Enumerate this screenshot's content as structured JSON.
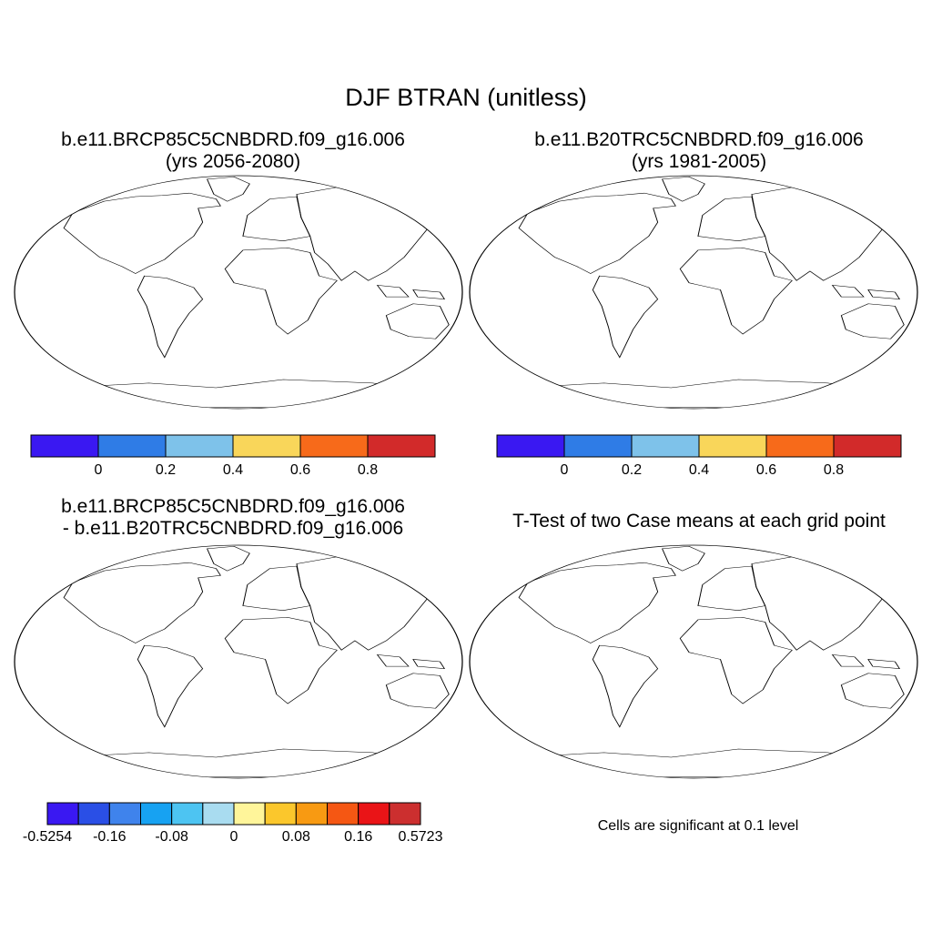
{
  "title": "DJF BTRAN (unitless)",
  "panels": [
    {
      "title_line1": "b.e11.BRCP85C5CNBDRD.f09_g16.006",
      "title_line2": "(yrs 2056-2080)",
      "map_type": "field",
      "colorbar": {
        "colors": [
          "#3a18f2",
          "#2f7ce6",
          "#7ec2ea",
          "#f9d65a",
          "#f76a1a",
          "#d22a2a"
        ],
        "labels": [
          "0",
          "0.2",
          "0.4",
          "0.6",
          "0.8"
        ]
      }
    },
    {
      "title_line1": "b.e11.B20TRC5CNBDRD.f09_g16.006",
      "title_line2": "(yrs 1981-2005)",
      "map_type": "field",
      "colorbar": {
        "colors": [
          "#3a18f2",
          "#2f7ce6",
          "#7ec2ea",
          "#f9d65a",
          "#f76a1a",
          "#d22a2a"
        ],
        "labels": [
          "0",
          "0.2",
          "0.4",
          "0.6",
          "0.8"
        ]
      }
    },
    {
      "title_line1": "b.e11.BRCP85C5CNBDRD.f09_g16.006",
      "title_line2": "- b.e11.B20TRC5CNBDRD.f09_g16.006",
      "map_type": "difference",
      "colorbar": {
        "colors": [
          "#3a18f2",
          "#2a4fe6",
          "#3f83ec",
          "#17a2f2",
          "#4dc4f2",
          "#a9dcf0",
          "#fff59a",
          "#fbc72c",
          "#f89a12",
          "#f55713",
          "#ea1417",
          "#cc2f2f"
        ],
        "labels": [
          "-0.5254",
          "-0.16",
          "-0.08",
          "0",
          "0.08",
          "0.16",
          "0.5723"
        ]
      }
    },
    {
      "title_line1": "T-Test of two Case means at each grid point",
      "title_line2": "",
      "map_type": "significance",
      "note": "Cells are significant at 0.1 level"
    }
  ]
}
